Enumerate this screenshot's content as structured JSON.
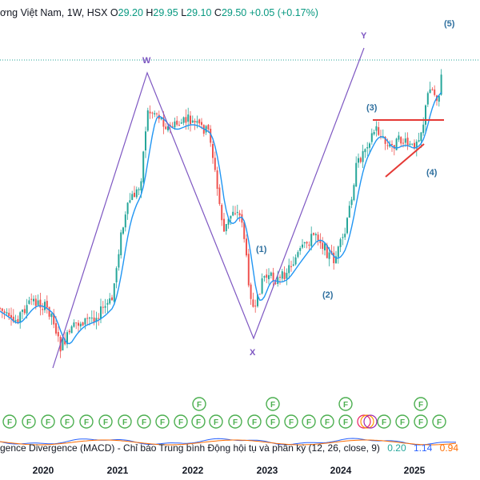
{
  "header": {
    "name": "ơng Việt Nam, 1W, HSX",
    "open_label": "O",
    "open": "29.20",
    "high_label": "H",
    "high": "29.95",
    "low_label": "L",
    "low": "29.10",
    "close_label": "C",
    "close": "29.50",
    "change": "+0.05 (+0.17%)"
  },
  "macd": {
    "label": "gence Divergence (MACD) - Chỉ báo Trung bình Động hội tụ và phân kỳ (12, 26, close, 9)",
    "histogram": "0.20",
    "macd": "1.14",
    "signal": "0.94"
  },
  "chart_data": {
    "type": "candlestick",
    "x_axis": {
      "ticks": [
        "2020",
        "2021",
        "2022",
        "2023",
        "2024",
        "2025"
      ]
    },
    "wave_labels": [
      "W",
      "X",
      "Y",
      "(1)",
      "(2)",
      "(3)",
      "(4)",
      "(5)"
    ],
    "event_marker_text": "F",
    "colors": {
      "up": "#26a69a",
      "down": "#ef5350",
      "ma": "#2196f3",
      "wave": "#7e57c2",
      "label": "#2e6f9e",
      "trendline": "#e53935",
      "event": "#4caf50"
    }
  }
}
